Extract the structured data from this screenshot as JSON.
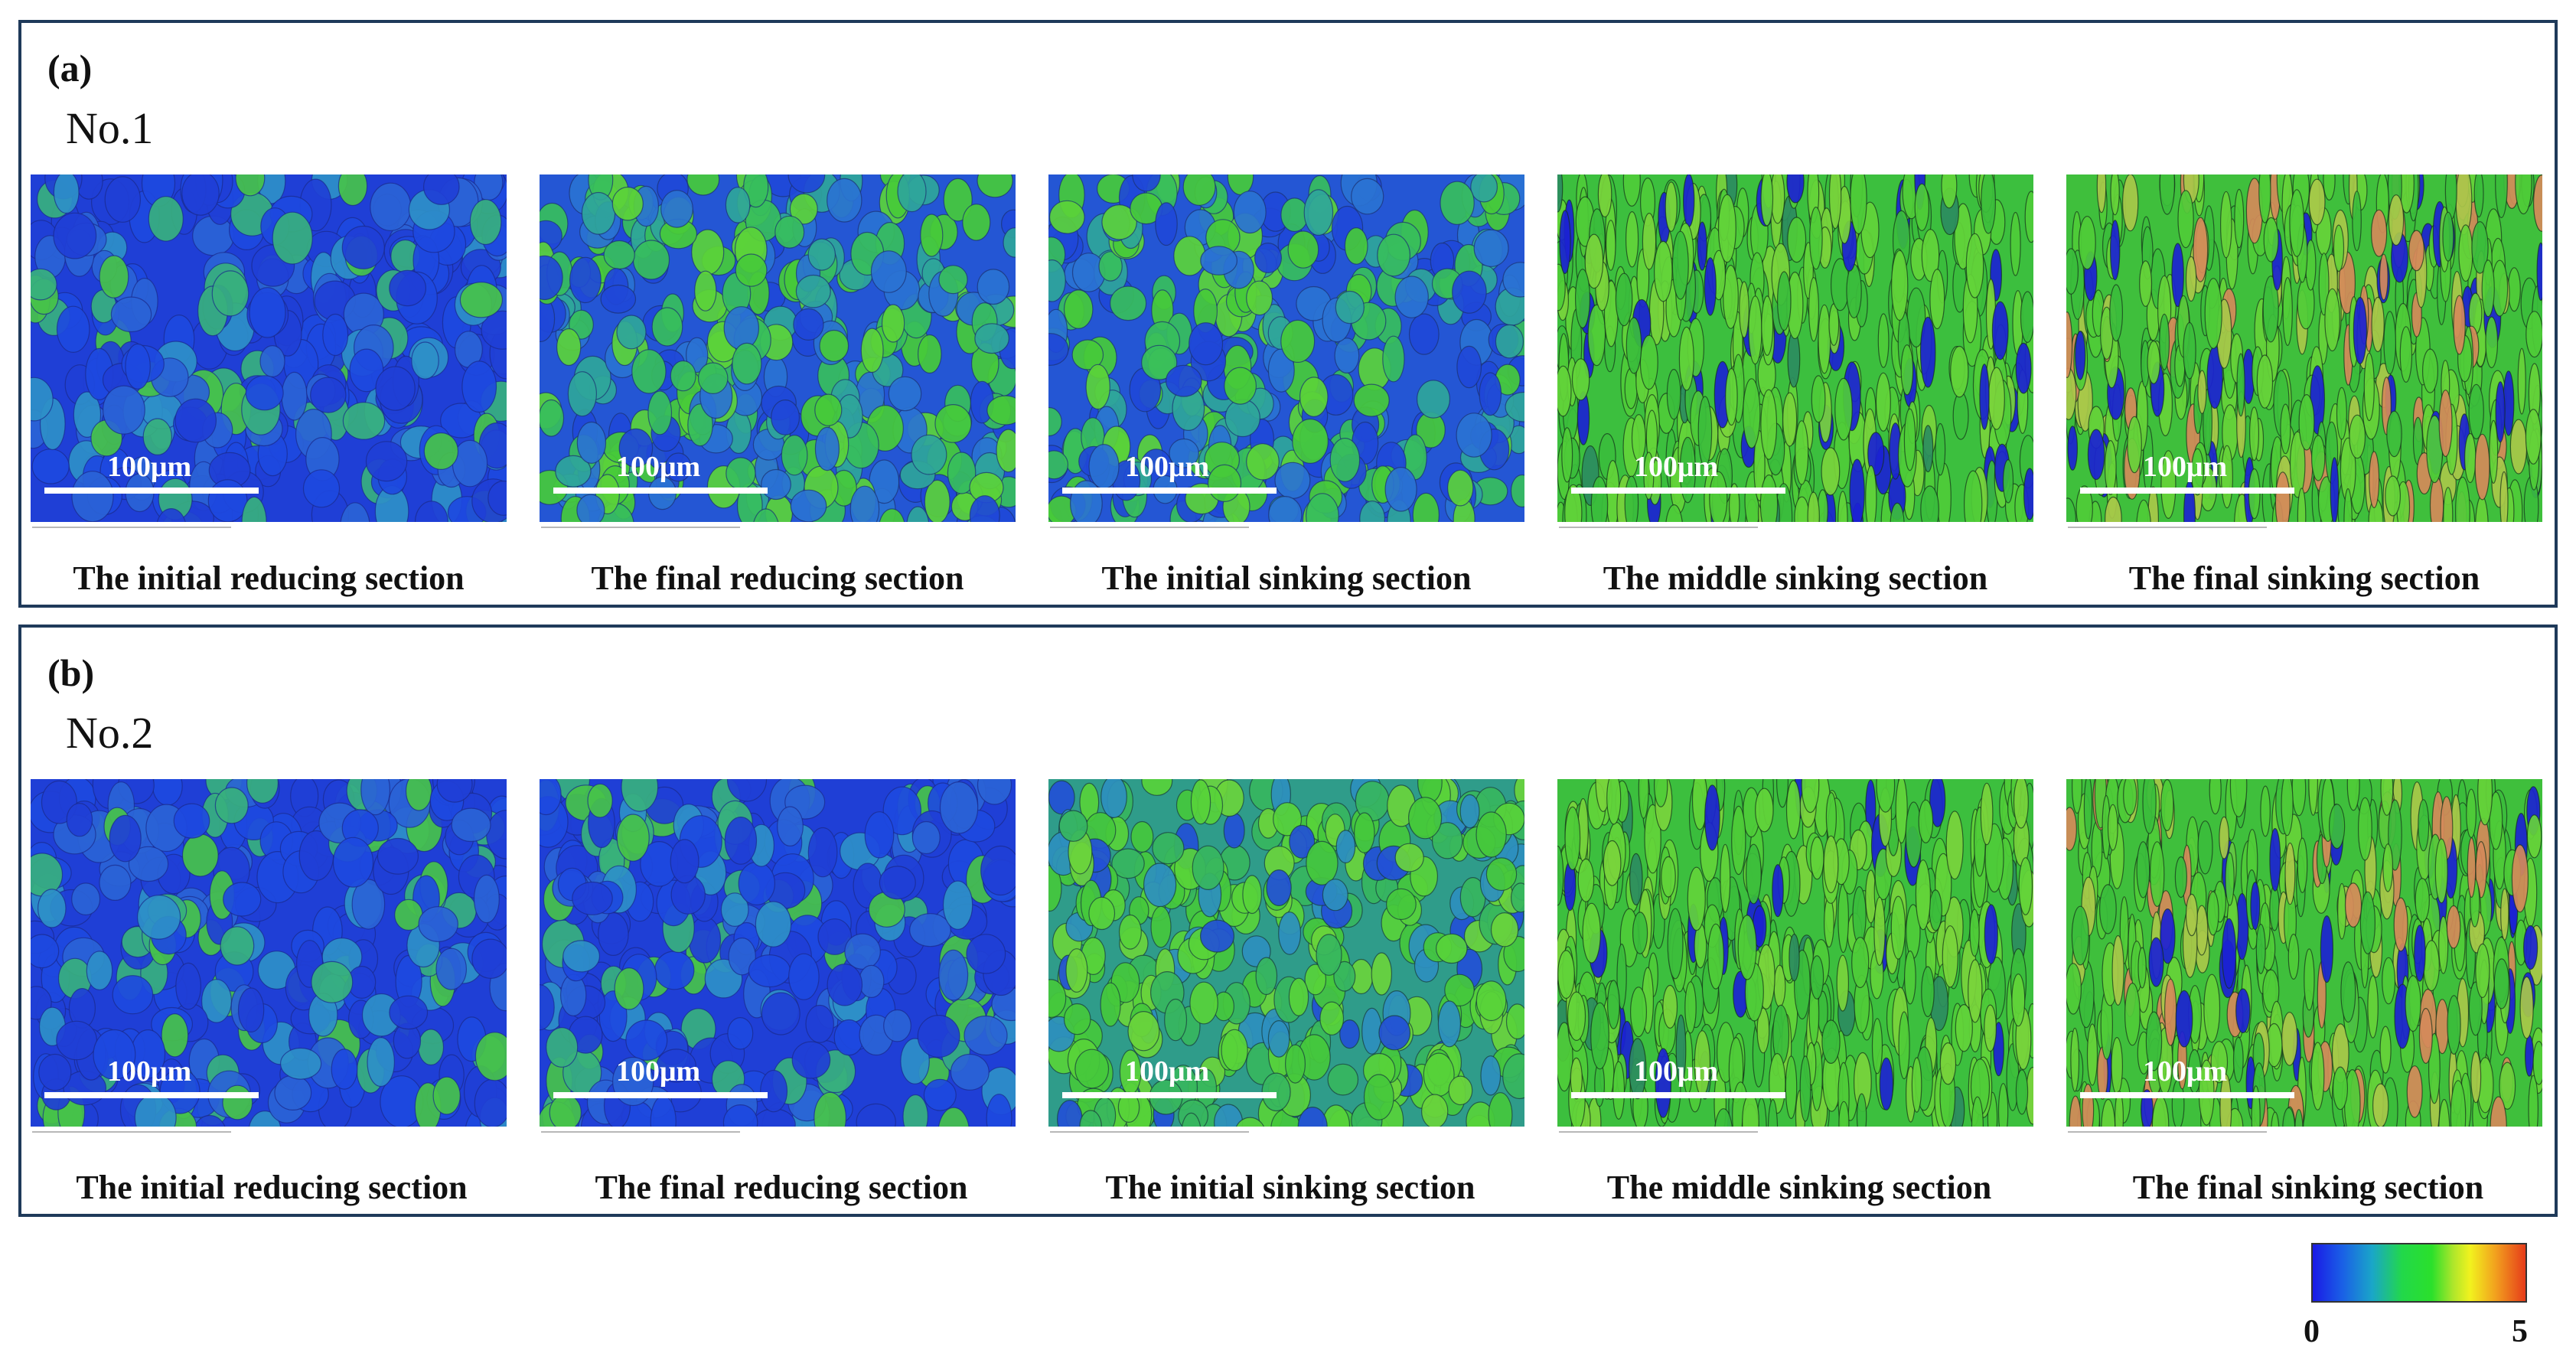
{
  "figure": {
    "panels": [
      {
        "label": "(a)",
        "sample": "No.1",
        "maps": [
          {
            "caption": "The initial reducing section",
            "scale": "100μm",
            "texture": "blue-dominant"
          },
          {
            "caption": "The final reducing section",
            "scale": "100μm",
            "texture": "blue-green"
          },
          {
            "caption": "The initial sinking section",
            "scale": "100μm",
            "texture": "blue-green"
          },
          {
            "caption": "The middle sinking section",
            "scale": "100μm",
            "texture": "green-elongated"
          },
          {
            "caption": "The final sinking section",
            "scale": "100μm",
            "texture": "green-elongated-red"
          }
        ]
      },
      {
        "label": "(b)",
        "sample": "No.2",
        "maps": [
          {
            "caption": "The initial reducing section",
            "scale": "100μm",
            "texture": "blue-dominant"
          },
          {
            "caption": "The final reducing section",
            "scale": "100μm",
            "texture": "blue-dominant"
          },
          {
            "caption": "The initial sinking section",
            "scale": "100μm",
            "texture": "green-dominant"
          },
          {
            "caption": "The middle sinking section",
            "scale": "100μm",
            "texture": "green-elongated"
          },
          {
            "caption": "The final sinking section",
            "scale": "100μm",
            "texture": "green-elongated-red"
          }
        ]
      }
    ],
    "colorbar": {
      "min": "0",
      "max": "5",
      "colors": [
        "#1a1ae6",
        "#1aa6c8",
        "#2be02b",
        "#f2f21e",
        "#e63c1a"
      ]
    }
  }
}
